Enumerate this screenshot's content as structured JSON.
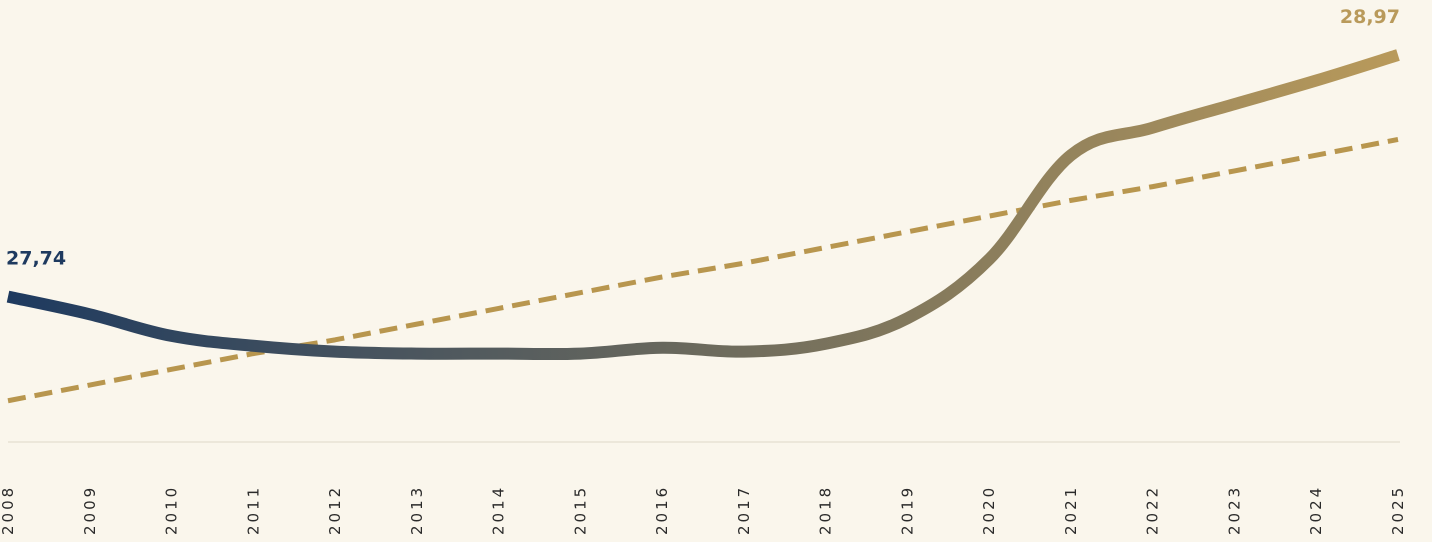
{
  "chart_data": {
    "type": "line",
    "categories": [
      "2008",
      "2009",
      "2010",
      "2011",
      "2012",
      "2013",
      "2014",
      "2015",
      "2016",
      "2017",
      "2018",
      "2019",
      "2020",
      "2021",
      "2022",
      "2023",
      "2024",
      "2025"
    ],
    "series": [
      {
        "gradient": [
          "#1e3a5f",
          "#b99a5b"
        ],
        "values": [
          27.74,
          27.65,
          27.54,
          27.49,
          27.46,
          27.45,
          27.45,
          27.45,
          27.48,
          27.46,
          27.5,
          27.63,
          27.93,
          28.46,
          28.6,
          28.72,
          28.84,
          28.97
        ]
      },
      {
        "color": "#b8964e",
        "dashed": true,
        "values": [
          27.21,
          27.29,
          27.37,
          27.45,
          27.52,
          27.6,
          27.68,
          27.76,
          27.84,
          27.91,
          27.99,
          28.07,
          28.15,
          28.23,
          28.3,
          28.38,
          28.46,
          28.54
        ]
      }
    ],
    "annotations": [
      {
        "index": 0,
        "series": 0,
        "label": "27,74",
        "color": "#1e3a5f"
      },
      {
        "index": 17,
        "series": 0,
        "label": "28,97",
        "color": "#b99a5b"
      }
    ],
    "ylim": [
      27,
      29.25
    ]
  }
}
